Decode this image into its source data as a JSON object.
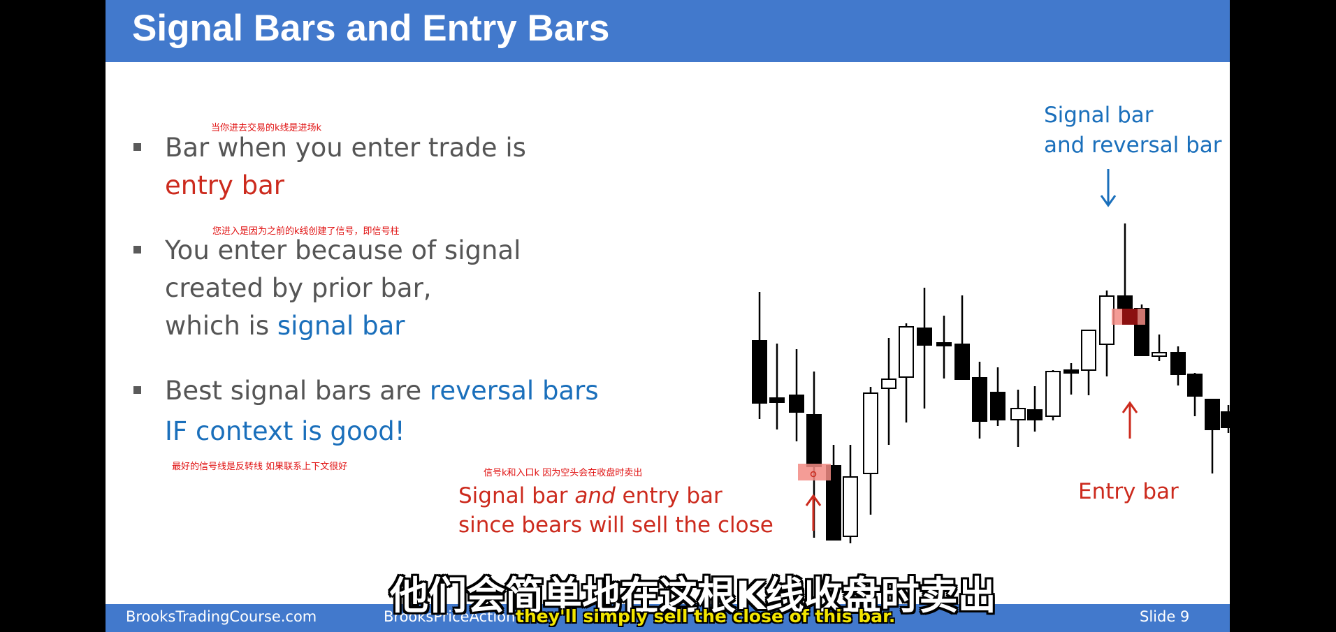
{
  "slide": {
    "title": "Signal Bars and Entry Bars",
    "footer": {
      "left": "BrooksTradingCourse.com",
      "middle": "BrooksPriceAction.",
      "slide_label": "Slide  9"
    }
  },
  "bullets": [
    {
      "note": "当你进去交易的k线是进场k",
      "line1": "Bar when you enter trade is",
      "line2_red": "entry bar"
    },
    {
      "note": "您进入是因为之前的k线创建了信号，即信号柱",
      "line1": "You enter because of signal",
      "line2": "created by prior bar,",
      "line3_prefix": "which is ",
      "line3_blue": "signal bar"
    },
    {
      "line1_prefix": "Best signal bars are ",
      "line1_blue": "reversal bars",
      "line2_blue": "IF context is good!",
      "note": "最好的信号线是反转线 如果联系上下文很好"
    }
  ],
  "annotations": {
    "signal_entry_note": "信号k和入口k 因为空头会在收盘时卖出",
    "signal_entry_line1_a": "Signal bar ",
    "signal_entry_line1_b": "and",
    "signal_entry_line1_c": " entry bar",
    "signal_entry_line2": "since bears will sell the close",
    "signal_reversal_line1": "Signal bar",
    "signal_reversal_line2": "and reversal bar",
    "entry_bar": "Entry bar"
  },
  "subtitles": {
    "chinese": "他们会简单地在这根K线收盘时卖出",
    "english": "they'll simply sell the close of this bar."
  },
  "colors": {
    "title_bar": "#4279cc",
    "red": "#cc2a1d",
    "blue": "#1a6fbb",
    "highlight": "#f28b84",
    "note_red": "#e01010"
  }
}
